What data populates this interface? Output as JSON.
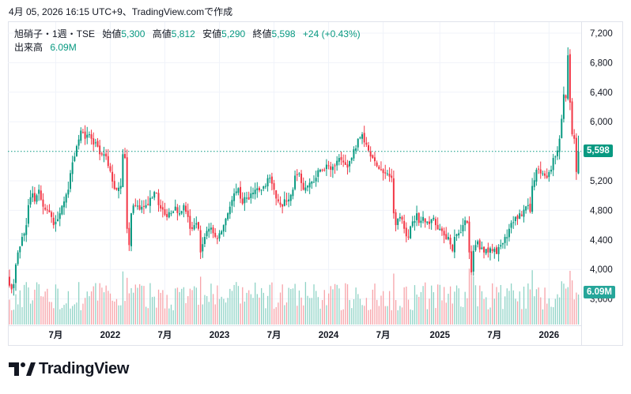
{
  "caption": "4月 05, 2026 16:15 UTC+9、TradingView.comで作成",
  "legend": {
    "symbol": "旭硝子・1週・TSE",
    "open_label": "始値",
    "open": "5,300",
    "high_label": "高値",
    "high": "5,812",
    "low_label": "安値",
    "low": "5,290",
    "close_label": "終値",
    "close": "5,598",
    "change": "+24 (+0.43%)",
    "volume_label": "出来高",
    "volume": "6.09M"
  },
  "colors": {
    "up": "#089981",
    "down": "#f23645",
    "up_volume": "#8fd3c6",
    "down_volume": "#f7a3a9",
    "volume_tag": "#26a69a"
  },
  "logo": "TradingView",
  "chart_data": {
    "type": "candlestick",
    "interval": "1W",
    "ylim": [
      3600,
      7200
    ],
    "y_ticks": [
      {
        "v": 7200,
        "t": "7,200"
      },
      {
        "v": 6800,
        "t": "6,800"
      },
      {
        "v": 6400,
        "t": "6,400"
      },
      {
        "v": 6000,
        "t": "6,000"
      },
      {
        "v": 5200,
        "t": "5,200"
      },
      {
        "v": 4800,
        "t": "4,800"
      },
      {
        "v": 4400,
        "t": "4,400"
      },
      {
        "v": 4000,
        "t": "4,000"
      },
      {
        "v": 3600,
        "t": "3,600"
      }
    ],
    "x_ticks": [
      {
        "w": 22,
        "t": "7月"
      },
      {
        "w": 48,
        "t": "2022"
      },
      {
        "w": 74,
        "t": "7月"
      },
      {
        "w": 100,
        "t": "2023"
      },
      {
        "w": 126,
        "t": "7月"
      },
      {
        "w": 152,
        "t": "2024"
      },
      {
        "w": 178,
        "t": "7月"
      },
      {
        "w": 205,
        "t": "2025"
      },
      {
        "w": 231,
        "t": "7月"
      },
      {
        "w": 257,
        "t": "2026"
      }
    ],
    "weeks": 272,
    "last_price": "5,598",
    "last_price_value": 5598,
    "last_volume": "6.09M",
    "last_volume_value": 6.09,
    "weekly_close_anchors": [
      [
        0,
        3780
      ],
      [
        2,
        3800
      ],
      [
        4,
        4230
      ],
      [
        6,
        4440
      ],
      [
        8,
        4600
      ],
      [
        9,
        4870
      ],
      [
        11,
        5030
      ],
      [
        12,
        4920
      ],
      [
        14,
        5080
      ],
      [
        16,
        4850
      ],
      [
        17,
        4810
      ],
      [
        20,
        4710
      ],
      [
        21,
        4600
      ],
      [
        23,
        4680
      ],
      [
        24,
        4760
      ],
      [
        26,
        4920
      ],
      [
        28,
        5080
      ],
      [
        30,
        5450
      ],
      [
        32,
        5670
      ],
      [
        34,
        5880
      ],
      [
        36,
        5770
      ],
      [
        38,
        5830
      ],
      [
        39,
        5770
      ],
      [
        41,
        5720
      ],
      [
        43,
        5560
      ],
      [
        45,
        5560
      ],
      [
        47,
        5400
      ],
      [
        49,
        5190
      ],
      [
        51,
        5080
      ],
      [
        53,
        5130
      ],
      [
        54,
        5560
      ],
      [
        55,
        5510
      ],
      [
        56,
        4550
      ],
      [
        57,
        4330
      ],
      [
        58,
        4760
      ],
      [
        60,
        4870
      ],
      [
        62,
        4810
      ],
      [
        64,
        4850
      ],
      [
        66,
        4870
      ],
      [
        68,
        4970
      ],
      [
        70,
        5030
      ],
      [
        71,
        4870
      ],
      [
        73,
        4810
      ],
      [
        75,
        4710
      ],
      [
        77,
        4760
      ],
      [
        79,
        4850
      ],
      [
        81,
        4760
      ],
      [
        83,
        4870
      ],
      [
        85,
        4710
      ],
      [
        86,
        4550
      ],
      [
        88,
        4600
      ],
      [
        90,
        4550
      ],
      [
        91,
        4230
      ],
      [
        93,
        4440
      ],
      [
        95,
        4550
      ],
      [
        97,
        4490
      ],
      [
        98,
        4440
      ],
      [
        100,
        4490
      ],
      [
        102,
        4600
      ],
      [
        104,
        4760
      ],
      [
        105,
        4850
      ],
      [
        107,
        5030
      ],
      [
        109,
        5100
      ],
      [
        111,
        4890
      ],
      [
        113,
        4970
      ],
      [
        115,
        5030
      ],
      [
        117,
        5080
      ],
      [
        118,
        5100
      ],
      [
        120,
        5080
      ],
      [
        122,
        5130
      ],
      [
        124,
        5240
      ],
      [
        126,
        5080
      ],
      [
        128,
        4920
      ],
      [
        130,
        4850
      ],
      [
        131,
        4950
      ],
      [
        132,
        4920
      ],
      [
        135,
        5080
      ],
      [
        136,
        5270
      ],
      [
        138,
        5300
      ],
      [
        140,
        5080
      ],
      [
        142,
        5130
      ],
      [
        144,
        5190
      ],
      [
        146,
        5240
      ],
      [
        148,
        5350
      ],
      [
        150,
        5350
      ],
      [
        152,
        5400
      ],
      [
        153,
        5350
      ],
      [
        155,
        5400
      ],
      [
        157,
        5510
      ],
      [
        159,
        5450
      ],
      [
        161,
        5380
      ],
      [
        163,
        5510
      ],
      [
        165,
        5640
      ],
      [
        166,
        5770
      ],
      [
        168,
        5830
      ],
      [
        169,
        5720
      ],
      [
        171,
        5610
      ],
      [
        173,
        5510
      ],
      [
        175,
        5400
      ],
      [
        177,
        5350
      ],
      [
        179,
        5300
      ],
      [
        180,
        5300
      ],
      [
        182,
        5240
      ],
      [
        183,
        4760
      ],
      [
        184,
        4600
      ],
      [
        186,
        4710
      ],
      [
        188,
        4550
      ],
      [
        190,
        4440
      ],
      [
        192,
        4650
      ],
      [
        194,
        4760
      ],
      [
        195,
        4630
      ],
      [
        197,
        4710
      ],
      [
        199,
        4650
      ],
      [
        201,
        4680
      ],
      [
        203,
        4600
      ],
      [
        205,
        4550
      ],
      [
        207,
        4460
      ],
      [
        209,
        4440
      ],
      [
        211,
        4250
      ],
      [
        212,
        4440
      ],
      [
        214,
        4490
      ],
      [
        216,
        4600
      ],
      [
        218,
        4630
      ],
      [
        219,
        4230
      ],
      [
        220,
        3960
      ],
      [
        221,
        4250
      ],
      [
        222,
        4330
      ],
      [
        223,
        4380
      ],
      [
        224,
        4270
      ],
      [
        226,
        4230
      ],
      [
        228,
        4230
      ],
      [
        230,
        4250
      ],
      [
        232,
        4210
      ],
      [
        234,
        4330
      ],
      [
        236,
        4440
      ],
      [
        238,
        4550
      ],
      [
        239,
        4630
      ],
      [
        241,
        4710
      ],
      [
        243,
        4760
      ],
      [
        245,
        4810
      ],
      [
        247,
        4870
      ],
      [
        248,
        4780
      ],
      [
        249,
        5130
      ],
      [
        251,
        5350
      ],
      [
        253,
        5300
      ],
      [
        254,
        5300
      ],
      [
        256,
        5240
      ],
      [
        258,
        5350
      ],
      [
        259,
        5510
      ],
      [
        261,
        5610
      ],
      [
        262,
        5770
      ],
      [
        263,
        6040
      ],
      [
        264,
        6370
      ],
      [
        265,
        6320
      ],
      [
        266,
        6900
      ],
      [
        267,
        6260
      ],
      [
        268,
        5830
      ],
      [
        269,
        5770
      ],
      [
        270,
        5320
      ],
      [
        271,
        5598
      ]
    ]
  }
}
